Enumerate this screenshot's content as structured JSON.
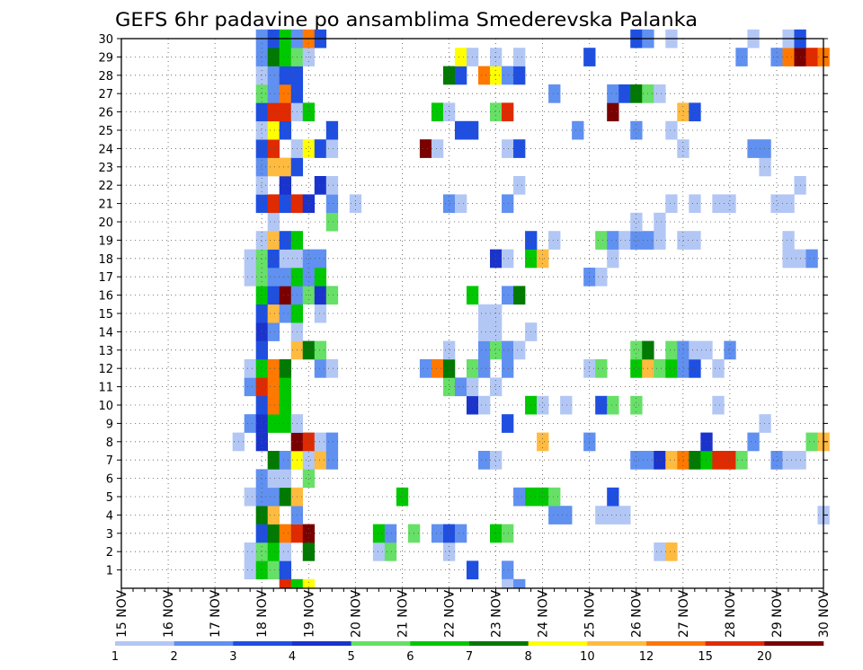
{
  "chart_data": {
    "type": "heatmap",
    "title": "GEFS 6hr padavine po ansamblima Smederevska Palanka",
    "x_tick_labels": [
      "15 NOV",
      "16 NOV",
      "17 NOV",
      "18 NOV",
      "19 NOV",
      "20 NOV",
      "21 NOV",
      "22 NOV",
      "23 NOV",
      "24 NOV",
      "25 NOV",
      "26 NOV",
      "27 NOV",
      "28 NOV",
      "29 NOV",
      "30 NOV"
    ],
    "y_tick_labels": [
      "1",
      "2",
      "3",
      "4",
      "5",
      "6",
      "7",
      "8",
      "9",
      "10",
      "11",
      "12",
      "13",
      "14",
      "15",
      "16",
      "17",
      "18",
      "19",
      "20",
      "21",
      "22",
      "23",
      "24",
      "25",
      "26",
      "27",
      "28",
      "29",
      "30"
    ],
    "x_range_steps": [
      0,
      60
    ],
    "y_range": [
      0,
      30
    ],
    "grid": "dotted",
    "legend": {
      "labels": [
        "1",
        "2",
        "3",
        "4",
        "5",
        "6",
        "7",
        "8",
        "10",
        "12",
        "15",
        "20"
      ],
      "colors": [
        "#b3c7f5",
        "#6090f0",
        "#1f4fe0",
        "#1a33cc",
        "#66e066",
        "#00c800",
        "#007a00",
        "#ffff00",
        "#ffbb40",
        "#ff7800",
        "#e02a00",
        "#7a0000"
      ]
    },
    "cells": [
      [
        1,
        11,
        0
      ],
      [
        1,
        12,
        5
      ],
      [
        1,
        13,
        4
      ],
      [
        1,
        14,
        2
      ],
      [
        1,
        30,
        2
      ],
      [
        1,
        33,
        1
      ],
      [
        2,
        11,
        0
      ],
      [
        2,
        12,
        4
      ],
      [
        2,
        13,
        5
      ],
      [
        2,
        14,
        0
      ],
      [
        2,
        16,
        6
      ],
      [
        2,
        22,
        0
      ],
      [
        2,
        23,
        4
      ],
      [
        2,
        28,
        0
      ],
      [
        2,
        46,
        0
      ],
      [
        2,
        47,
        8
      ],
      [
        3,
        12,
        2
      ],
      [
        3,
        13,
        6
      ],
      [
        3,
        14,
        9
      ],
      [
        3,
        15,
        10
      ],
      [
        3,
        16,
        11
      ],
      [
        3,
        22,
        5
      ],
      [
        3,
        23,
        1
      ],
      [
        3,
        25,
        4
      ],
      [
        3,
        27,
        1
      ],
      [
        3,
        28,
        2
      ],
      [
        3,
        29,
        1
      ],
      [
        3,
        32,
        5
      ],
      [
        3,
        33,
        4
      ],
      [
        4,
        12,
        6
      ],
      [
        4,
        13,
        8
      ],
      [
        4,
        15,
        1
      ],
      [
        4,
        37,
        1
      ],
      [
        4,
        38,
        1
      ],
      [
        4,
        41,
        0
      ],
      [
        4,
        42,
        0
      ],
      [
        4,
        43,
        0
      ],
      [
        4,
        60,
        0
      ],
      [
        5,
        11,
        0
      ],
      [
        5,
        12,
        1
      ],
      [
        5,
        13,
        1
      ],
      [
        5,
        14,
        6
      ],
      [
        5,
        15,
        8
      ],
      [
        5,
        24,
        5
      ],
      [
        5,
        34,
        1
      ],
      [
        5,
        35,
        5
      ],
      [
        5,
        36,
        5
      ],
      [
        5,
        37,
        4
      ],
      [
        5,
        42,
        2
      ],
      [
        6,
        12,
        1
      ],
      [
        6,
        13,
        0
      ],
      [
        6,
        14,
        0
      ],
      [
        6,
        16,
        4
      ],
      [
        7,
        13,
        6
      ],
      [
        7,
        14,
        1
      ],
      [
        7,
        15,
        7
      ],
      [
        7,
        16,
        0
      ],
      [
        7,
        17,
        8
      ],
      [
        7,
        18,
        1
      ],
      [
        7,
        31,
        1
      ],
      [
        7,
        32,
        0
      ],
      [
        7,
        44,
        1
      ],
      [
        7,
        45,
        1
      ],
      [
        7,
        46,
        3
      ],
      [
        7,
        47,
        8
      ],
      [
        7,
        48,
        9
      ],
      [
        7,
        49,
        6
      ],
      [
        7,
        50,
        5
      ],
      [
        7,
        51,
        10
      ],
      [
        7,
        52,
        10
      ],
      [
        7,
        53,
        4
      ],
      [
        7,
        56,
        1
      ],
      [
        7,
        57,
        0
      ],
      [
        7,
        58,
        0
      ],
      [
        8,
        10,
        0
      ],
      [
        8,
        12,
        3
      ],
      [
        8,
        15,
        11
      ],
      [
        8,
        16,
        10
      ],
      [
        8,
        17,
        0
      ],
      [
        8,
        18,
        1
      ],
      [
        8,
        36,
        8
      ],
      [
        8,
        40,
        1
      ],
      [
        8,
        50,
        3
      ],
      [
        8,
        54,
        1
      ],
      [
        8,
        59,
        4
      ],
      [
        8,
        60,
        8
      ],
      [
        9,
        11,
        1
      ],
      [
        9,
        12,
        3
      ],
      [
        9,
        13,
        5
      ],
      [
        9,
        14,
        5
      ],
      [
        9,
        15,
        0
      ],
      [
        9,
        33,
        2
      ],
      [
        9,
        55,
        0
      ],
      [
        10,
        12,
        2
      ],
      [
        10,
        13,
        9
      ],
      [
        10,
        14,
        5
      ],
      [
        10,
        30,
        3
      ],
      [
        10,
        31,
        0
      ],
      [
        10,
        35,
        5
      ],
      [
        10,
        36,
        0
      ],
      [
        10,
        38,
        0
      ],
      [
        10,
        41,
        2
      ],
      [
        10,
        42,
        4
      ],
      [
        10,
        44,
        4
      ],
      [
        10,
        51,
        0
      ],
      [
        11,
        11,
        1
      ],
      [
        11,
        12,
        10
      ],
      [
        11,
        13,
        9
      ],
      [
        11,
        14,
        5
      ],
      [
        11,
        28,
        4
      ],
      [
        11,
        29,
        1
      ],
      [
        11,
        30,
        0
      ],
      [
        11,
        32,
        0
      ],
      [
        12,
        11,
        0
      ],
      [
        12,
        12,
        5
      ],
      [
        12,
        13,
        9
      ],
      [
        12,
        14,
        6
      ],
      [
        12,
        17,
        1
      ],
      [
        12,
        18,
        0
      ],
      [
        12,
        26,
        1
      ],
      [
        12,
        27,
        9
      ],
      [
        12,
        28,
        6
      ],
      [
        12,
        30,
        4
      ],
      [
        12,
        31,
        1
      ],
      [
        12,
        33,
        1
      ],
      [
        12,
        40,
        0
      ],
      [
        12,
        41,
        4
      ],
      [
        12,
        44,
        5
      ],
      [
        12,
        45,
        8
      ],
      [
        12,
        46,
        4
      ],
      [
        12,
        47,
        5
      ],
      [
        12,
        48,
        1
      ],
      [
        12,
        49,
        2
      ],
      [
        12,
        51,
        0
      ],
      [
        13,
        12,
        2
      ],
      [
        13,
        15,
        8
      ],
      [
        13,
        16,
        6
      ],
      [
        13,
        17,
        4
      ],
      [
        13,
        28,
        0
      ],
      [
        13,
        31,
        1
      ],
      [
        13,
        32,
        4
      ],
      [
        13,
        33,
        1
      ],
      [
        13,
        34,
        0
      ],
      [
        13,
        44,
        4
      ],
      [
        13,
        45,
        6
      ],
      [
        13,
        47,
        4
      ],
      [
        13,
        48,
        1
      ],
      [
        13,
        49,
        0
      ],
      [
        13,
        50,
        0
      ],
      [
        13,
        52,
        1
      ],
      [
        14,
        12,
        3
      ],
      [
        14,
        13,
        1
      ],
      [
        14,
        15,
        0
      ],
      [
        14,
        31,
        0
      ],
      [
        14,
        32,
        0
      ],
      [
        14,
        35,
        0
      ],
      [
        15,
        12,
        2
      ],
      [
        15,
        13,
        8
      ],
      [
        15,
        14,
        1
      ],
      [
        15,
        15,
        5
      ],
      [
        15,
        17,
        0
      ],
      [
        15,
        31,
        0
      ],
      [
        15,
        32,
        0
      ],
      [
        16,
        12,
        5
      ],
      [
        16,
        13,
        2
      ],
      [
        16,
        14,
        11
      ],
      [
        16,
        15,
        1
      ],
      [
        16,
        16,
        4
      ],
      [
        16,
        17,
        3
      ],
      [
        16,
        18,
        4
      ],
      [
        16,
        30,
        5
      ],
      [
        16,
        33,
        1
      ],
      [
        16,
        34,
        6
      ],
      [
        17,
        11,
        0
      ],
      [
        17,
        12,
        4
      ],
      [
        17,
        13,
        1
      ],
      [
        17,
        14,
        1
      ],
      [
        17,
        15,
        5
      ],
      [
        17,
        16,
        1
      ],
      [
        17,
        17,
        5
      ],
      [
        17,
        40,
        1
      ],
      [
        17,
        41,
        0
      ],
      [
        18,
        11,
        0
      ],
      [
        18,
        12,
        4
      ],
      [
        18,
        13,
        2
      ],
      [
        18,
        14,
        0
      ],
      [
        18,
        15,
        0
      ],
      [
        18,
        16,
        1
      ],
      [
        18,
        17,
        1
      ],
      [
        18,
        32,
        3
      ],
      [
        18,
        33,
        0
      ],
      [
        18,
        35,
        5
      ],
      [
        18,
        36,
        8
      ],
      [
        18,
        42,
        0
      ],
      [
        18,
        57,
        0
      ],
      [
        18,
        58,
        0
      ],
      [
        18,
        59,
        1
      ],
      [
        19,
        12,
        0
      ],
      [
        19,
        13,
        8
      ],
      [
        19,
        14,
        2
      ],
      [
        19,
        15,
        5
      ],
      [
        19,
        35,
        2
      ],
      [
        19,
        37,
        0
      ],
      [
        19,
        41,
        4
      ],
      [
        19,
        42,
        1
      ],
      [
        19,
        43,
        0
      ],
      [
        19,
        44,
        1
      ],
      [
        19,
        45,
        1
      ],
      [
        19,
        46,
        0
      ],
      [
        19,
        48,
        0
      ],
      [
        19,
        49,
        0
      ],
      [
        19,
        57,
        0
      ],
      [
        20,
        13,
        0
      ],
      [
        20,
        18,
        4
      ],
      [
        20,
        44,
        0
      ],
      [
        20,
        46,
        0
      ],
      [
        21,
        12,
        2
      ],
      [
        21,
        13,
        10
      ],
      [
        21,
        14,
        2
      ],
      [
        21,
        15,
        10
      ],
      [
        21,
        16,
        3
      ],
      [
        21,
        18,
        1
      ],
      [
        21,
        20,
        0
      ],
      [
        21,
        28,
        1
      ],
      [
        21,
        29,
        0
      ],
      [
        21,
        33,
        1
      ],
      [
        21,
        47,
        0
      ],
      [
        21,
        49,
        0
      ],
      [
        21,
        51,
        0
      ],
      [
        21,
        52,
        0
      ],
      [
        21,
        56,
        0
      ],
      [
        21,
        57,
        0
      ],
      [
        22,
        12,
        0
      ],
      [
        22,
        14,
        3
      ],
      [
        22,
        17,
        3
      ],
      [
        22,
        18,
        0
      ],
      [
        22,
        34,
        0
      ],
      [
        22,
        58,
        0
      ],
      [
        23,
        12,
        1
      ],
      [
        23,
        13,
        8
      ],
      [
        23,
        14,
        8
      ],
      [
        23,
        15,
        2
      ],
      [
        23,
        55,
        0
      ],
      [
        24,
        12,
        2
      ],
      [
        24,
        13,
        10
      ],
      [
        24,
        15,
        0
      ],
      [
        24,
        16,
        7
      ],
      [
        24,
        17,
        2
      ],
      [
        24,
        18,
        0
      ],
      [
        24,
        26,
        11
      ],
      [
        24,
        27,
        0
      ],
      [
        24,
        33,
        0
      ],
      [
        24,
        34,
        2
      ],
      [
        24,
        48,
        0
      ],
      [
        24,
        54,
        1
      ],
      [
        24,
        55,
        1
      ],
      [
        25,
        12,
        0
      ],
      [
        25,
        13,
        7
      ],
      [
        25,
        14,
        2
      ],
      [
        25,
        18,
        2
      ],
      [
        25,
        29,
        2
      ],
      [
        25,
        30,
        2
      ],
      [
        25,
        39,
        1
      ],
      [
        25,
        44,
        1
      ],
      [
        25,
        47,
        0
      ],
      [
        26,
        12,
        2
      ],
      [
        26,
        13,
        10
      ],
      [
        26,
        14,
        10
      ],
      [
        26,
        15,
        0
      ],
      [
        26,
        16,
        5
      ],
      [
        26,
        27,
        5
      ],
      [
        26,
        28,
        0
      ],
      [
        26,
        32,
        4
      ],
      [
        26,
        33,
        10
      ],
      [
        26,
        42,
        11
      ],
      [
        26,
        48,
        8
      ],
      [
        26,
        49,
        2
      ],
      [
        27,
        12,
        4
      ],
      [
        27,
        13,
        1
      ],
      [
        27,
        14,
        9
      ],
      [
        27,
        15,
        2
      ],
      [
        27,
        37,
        1
      ],
      [
        27,
        42,
        1
      ],
      [
        27,
        43,
        2
      ],
      [
        27,
        44,
        6
      ],
      [
        27,
        45,
        4
      ],
      [
        27,
        46,
        0
      ],
      [
        28,
        12,
        0
      ],
      [
        28,
        13,
        1
      ],
      [
        28,
        14,
        2
      ],
      [
        28,
        15,
        2
      ],
      [
        28,
        28,
        6
      ],
      [
        28,
        29,
        2
      ],
      [
        28,
        31,
        9
      ],
      [
        28,
        32,
        7
      ],
      [
        28,
        33,
        1
      ],
      [
        28,
        34,
        2
      ],
      [
        29,
        12,
        1
      ],
      [
        29,
        13,
        6
      ],
      [
        29,
        14,
        5
      ],
      [
        29,
        15,
        4
      ],
      [
        29,
        16,
        0
      ],
      [
        29,
        29,
        7
      ],
      [
        29,
        30,
        0
      ],
      [
        29,
        32,
        0
      ],
      [
        29,
        34,
        0
      ],
      [
        29,
        40,
        2
      ],
      [
        29,
        53,
        1
      ],
      [
        29,
        56,
        1
      ],
      [
        29,
        57,
        9
      ],
      [
        29,
        58,
        11
      ],
      [
        29,
        59,
        10
      ],
      [
        29,
        60,
        9
      ],
      [
        30,
        12,
        1
      ],
      [
        30,
        13,
        2
      ],
      [
        30,
        14,
        5
      ],
      [
        30,
        15,
        1
      ],
      [
        30,
        16,
        9
      ],
      [
        30,
        17,
        2
      ],
      [
        30,
        44,
        2
      ],
      [
        30,
        45,
        1
      ],
      [
        30,
        47,
        0
      ],
      [
        30,
        54,
        0
      ],
      [
        30,
        57,
        0
      ],
      [
        30,
        58,
        2
      ]
    ],
    "partial_cells_bottom_edge": [
      [
        14,
        10
      ],
      [
        15,
        5
      ],
      [
        16,
        7
      ],
      [
        33,
        0
      ],
      [
        34,
        1
      ]
    ]
  }
}
